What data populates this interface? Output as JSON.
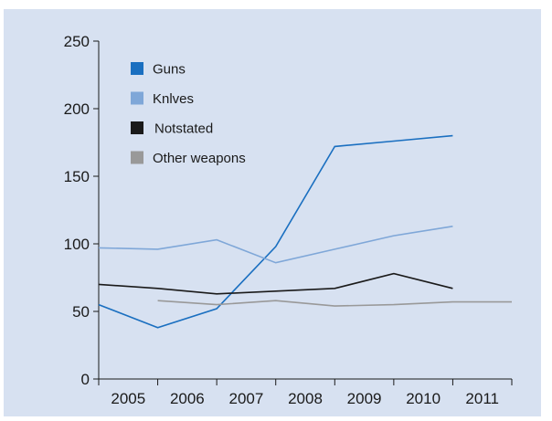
{
  "chart_data": {
    "type": "line",
    "title": "",
    "xlabel": "",
    "ylabel": "",
    "ylim": [
      0,
      250
    ],
    "yticks": [
      0,
      50,
      100,
      150,
      200,
      250
    ],
    "categories": [
      "2005",
      "2006",
      "2007",
      "2008",
      "2009",
      "2010",
      "2011"
    ],
    "grid": false,
    "legend_position": "top-left",
    "series": [
      {
        "name": "Guns",
        "color": "#1a6fc0",
        "points": [
          [
            2004.5,
            55
          ],
          [
            2005.5,
            38
          ],
          [
            2006.5,
            52
          ],
          [
            2007.5,
            98
          ],
          [
            2008.5,
            172
          ],
          [
            2009.5,
            176
          ],
          [
            2010.5,
            180
          ]
        ]
      },
      {
        "name": "Knlves",
        "color": "#7fa7d8",
        "points": [
          [
            2004.5,
            97
          ],
          [
            2005.5,
            96
          ],
          [
            2006.5,
            103
          ],
          [
            2007.5,
            86
          ],
          [
            2008.5,
            96
          ],
          [
            2009.5,
            106
          ],
          [
            2010.5,
            113
          ]
        ]
      },
      {
        "name": "Notstated",
        "color": "#1a1a1a",
        "points": [
          [
            2004.5,
            70
          ],
          [
            2005.5,
            67
          ],
          [
            2006.5,
            63
          ],
          [
            2007.5,
            65
          ],
          [
            2008.5,
            67
          ],
          [
            2009.5,
            78
          ],
          [
            2010.5,
            67
          ]
        ]
      },
      {
        "name": "Other weapons",
        "color": "#999999",
        "points": [
          [
            2005.5,
            58
          ],
          [
            2006.5,
            55
          ],
          [
            2007.5,
            58
          ],
          [
            2008.5,
            54
          ],
          [
            2009.5,
            55
          ],
          [
            2010.5,
            57
          ],
          [
            2011.5,
            57
          ]
        ]
      }
    ]
  }
}
